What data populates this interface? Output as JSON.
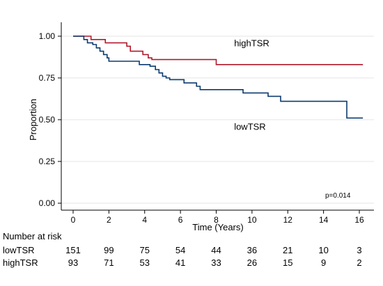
{
  "chart_data": {
    "type": "line",
    "step": true,
    "ylabel": "Proportion",
    "xlabel": "Time (Years)",
    "xlim": [
      0,
      16
    ],
    "ylim": [
      0,
      1
    ],
    "x_ticks": [
      0,
      2,
      4,
      6,
      8,
      10,
      12,
      14,
      16
    ],
    "y_ticks": [
      "0.00",
      "0.25",
      "0.50",
      "0.75",
      "1.00"
    ],
    "y_tick_values": [
      0,
      0.25,
      0.5,
      0.75,
      1.0
    ],
    "annotation": "p=0.014",
    "series": [
      {
        "name": "highTSR",
        "color": "#b2182b",
        "points": [
          [
            0,
            1.0
          ],
          [
            1.0,
            0.98
          ],
          [
            1.8,
            0.96
          ],
          [
            3.0,
            0.94
          ],
          [
            3.2,
            0.91
          ],
          [
            3.9,
            0.89
          ],
          [
            4.2,
            0.87
          ],
          [
            4.4,
            0.86
          ],
          [
            7.9,
            0.86
          ],
          [
            8.0,
            0.83
          ],
          [
            16.2,
            0.83
          ]
        ]
      },
      {
        "name": "lowTSR",
        "color": "#0b3a6e",
        "points": [
          [
            0,
            1.0
          ],
          [
            0.6,
            0.98
          ],
          [
            0.8,
            0.96
          ],
          [
            1.1,
            0.95
          ],
          [
            1.3,
            0.93
          ],
          [
            1.5,
            0.91
          ],
          [
            1.7,
            0.89
          ],
          [
            1.9,
            0.87
          ],
          [
            2.0,
            0.85
          ],
          [
            3.7,
            0.83
          ],
          [
            4.3,
            0.82
          ],
          [
            4.6,
            0.8
          ],
          [
            4.8,
            0.78
          ],
          [
            5.0,
            0.76
          ],
          [
            5.2,
            0.75
          ],
          [
            5.4,
            0.74
          ],
          [
            6.2,
            0.72
          ],
          [
            6.9,
            0.7
          ],
          [
            7.1,
            0.68
          ],
          [
            9.5,
            0.66
          ],
          [
            10.9,
            0.64
          ],
          [
            11.6,
            0.61
          ],
          [
            15.2,
            0.61
          ],
          [
            15.3,
            0.51
          ],
          [
            16.2,
            0.51
          ]
        ]
      }
    ],
    "series_labels": [
      {
        "text": "highTSR",
        "x": 9.0,
        "y": 0.94
      },
      {
        "text": "lowTSR",
        "x": 9.0,
        "y": 0.44
      }
    ]
  },
  "risk_table": {
    "title": "Number at risk",
    "time_points": [
      0,
      2,
      4,
      6,
      8,
      10,
      12,
      14,
      16
    ],
    "rows": [
      {
        "label": "lowTSR",
        "values": [
          "151",
          "99",
          "75",
          "54",
          "44",
          "36",
          "21",
          "10",
          "3"
        ]
      },
      {
        "label": "highTSR",
        "values": [
          "93",
          "71",
          "53",
          "41",
          "33",
          "26",
          "15",
          "9",
          "2"
        ]
      }
    ]
  }
}
